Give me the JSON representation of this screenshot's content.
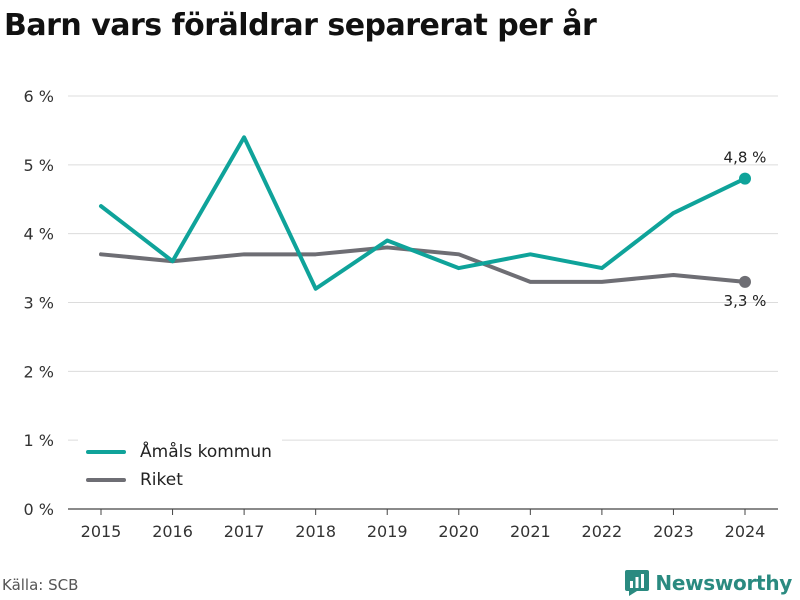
{
  "title": "Barn vars föräldrar separerat per år",
  "source": "Källa: SCB",
  "brand": "Newsworthy",
  "chart_data": {
    "type": "line",
    "title": "Barn vars föräldrar separerat per år",
    "x": [
      "2015",
      "2016",
      "2017",
      "2018",
      "2019",
      "2020",
      "2021",
      "2022",
      "2023",
      "2024"
    ],
    "y_ticks": [
      "0 %",
      "1 %",
      "2 %",
      "3 %",
      "4 %",
      "5 %",
      "6 %"
    ],
    "ylim": [
      0,
      6
    ],
    "grid": true,
    "legend_placement": "bottom-left",
    "series": [
      {
        "name": "Åmåls kommun",
        "color": "#0fa39a",
        "values": [
          4.4,
          3.6,
          5.4,
          3.2,
          3.9,
          3.5,
          3.7,
          3.5,
          4.3,
          4.8
        ],
        "end_label": "4,8 %"
      },
      {
        "name": "Riket",
        "color": "#6e6e74",
        "values": [
          3.7,
          3.6,
          3.7,
          3.7,
          3.8,
          3.7,
          3.3,
          3.3,
          3.4,
          3.3
        ],
        "end_label": "3,3 %"
      }
    ]
  }
}
